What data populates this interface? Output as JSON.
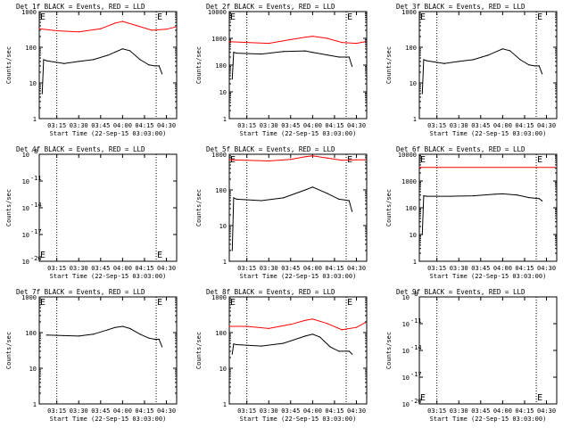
{
  "figure": {
    "ylabel": "Counts/sec",
    "xlabel": "Start Time (22-Sep-15 03:03:00)",
    "xticks": [
      "03:15",
      "03:30",
      "03:45",
      "04:00",
      "04:15",
      "04:30"
    ],
    "colors": {
      "events": "#000000",
      "lld": "#ff0000",
      "axes": "#000000",
      "background": "#ffffff"
    }
  },
  "chart_data": [
    {
      "type": "line",
      "title": "Det 1f BLACK = Events, RED = LLD",
      "yscale": "log",
      "ylim": [
        1,
        1000
      ],
      "yticklabels": [
        "1",
        "10",
        "100",
        "1000"
      ],
      "ytick_values": [
        1,
        10,
        100,
        1000
      ],
      "marker_labels": [
        {
          "text": "E",
          "x": "03:03"
        },
        {
          "text": "E",
          "x": "04:23"
        }
      ],
      "dotted_vlines": [
        "03:15",
        "04:23"
      ],
      "series": [
        {
          "key": "events",
          "x": [
            "03:05",
            "03:06",
            "03:08",
            "03:20",
            "03:30",
            "03:40",
            "03:50",
            "04:00",
            "04:05",
            "04:12",
            "04:18",
            "04:22",
            "04:25",
            "04:27"
          ],
          "values": [
            5,
            45,
            42,
            35,
            40,
            45,
            60,
            90,
            80,
            45,
            32,
            30,
            30,
            18
          ]
        },
        {
          "key": "lld",
          "x": [
            "03:03",
            "03:15",
            "03:30",
            "03:45",
            "03:55",
            "04:00",
            "04:10",
            "04:20",
            "04:30",
            "04:36"
          ],
          "values": [
            330,
            290,
            270,
            330,
            480,
            530,
            400,
            300,
            320,
            370
          ]
        }
      ]
    },
    {
      "type": "line",
      "title": "Det 2f BLACK = Events, RED = LLD",
      "yscale": "log",
      "ylim": [
        1,
        10000
      ],
      "yticklabels": [
        "1",
        "10",
        "100",
        "1000",
        "10000"
      ],
      "ytick_values": [
        1,
        10,
        100,
        1000,
        10000
      ],
      "marker_labels": [
        {
          "text": "E",
          "x": "03:03"
        },
        {
          "text": "E",
          "x": "04:23"
        }
      ],
      "dotted_vlines": [
        "03:15",
        "04:23"
      ],
      "series": [
        {
          "key": "events",
          "x": [
            "03:05",
            "03:06",
            "03:08",
            "03:25",
            "03:40",
            "03:55",
            "04:00",
            "04:10",
            "04:18",
            "04:25",
            "04:27"
          ],
          "values": [
            30,
            300,
            280,
            260,
            320,
            340,
            300,
            240,
            200,
            200,
            90
          ]
        },
        {
          "key": "lld",
          "x": [
            "03:03",
            "03:15",
            "03:30",
            "03:45",
            "03:55",
            "04:00",
            "04:10",
            "04:20",
            "04:30",
            "04:36"
          ],
          "values": [
            750,
            700,
            650,
            900,
            1100,
            1200,
            1000,
            700,
            650,
            750
          ]
        }
      ]
    },
    {
      "type": "line",
      "title": "Det 3f BLACK = Events, RED = LLD",
      "yscale": "log",
      "ylim": [
        1,
        1000
      ],
      "yticklabels": [
        "1",
        "10",
        "100",
        "1000"
      ],
      "ytick_values": [
        1,
        10,
        100,
        1000
      ],
      "marker_labels": [
        {
          "text": "E",
          "x": "03:03"
        },
        {
          "text": "E",
          "x": "04:23"
        }
      ],
      "dotted_vlines": [
        "03:15",
        "04:23"
      ],
      "series": [
        {
          "key": "events",
          "x": [
            "03:05",
            "03:06",
            "03:08",
            "03:20",
            "03:30",
            "03:40",
            "03:50",
            "04:00",
            "04:05",
            "04:12",
            "04:18",
            "04:22",
            "04:25",
            "04:27"
          ],
          "values": [
            5,
            45,
            42,
            35,
            40,
            45,
            60,
            90,
            80,
            45,
            32,
            30,
            30,
            18
          ]
        }
      ]
    },
    {
      "type": "line",
      "title": "Det 4f BLACK = Events, RED = LLD",
      "yscale": "log",
      "ylim": [
        1e-20,
        1e-08
      ],
      "yticklabels": [
        "10",
        "10",
        "10",
        "10",
        "10"
      ],
      "ytick_values": [
        -20,
        -17,
        -14,
        -11,
        -8
      ],
      "ytick_exponents": [
        "-20",
        "-17",
        "-14",
        "-11",
        "-8"
      ],
      "marker_labels": [
        {
          "text": "E",
          "x": "03:03"
        },
        {
          "text": "E",
          "x": "04:23"
        }
      ],
      "dotted_vlines": [
        "03:15",
        "04:23"
      ],
      "series": []
    },
    {
      "type": "line",
      "title": "Det 5f BLACK = Events, RED = LLD",
      "yscale": "log",
      "ylim": [
        1,
        1000
      ],
      "yticklabels": [
        "1",
        "10",
        "100",
        "1000"
      ],
      "ytick_values": [
        1,
        10,
        100,
        1000
      ],
      "marker_labels": [
        {
          "text": "E",
          "x": "03:03"
        },
        {
          "text": "E",
          "x": "04:23"
        }
      ],
      "dotted_vlines": [
        "03:15",
        "04:23"
      ],
      "series": [
        {
          "key": "events",
          "x": [
            "03:05",
            "03:06",
            "03:08",
            "03:25",
            "03:40",
            "03:55",
            "04:00",
            "04:10",
            "04:18",
            "04:25",
            "04:27"
          ],
          "values": [
            2,
            60,
            55,
            50,
            60,
            100,
            120,
            80,
            55,
            50,
            25
          ]
        },
        {
          "key": "lld",
          "x": [
            "03:03",
            "03:15",
            "03:30",
            "03:45",
            "03:55",
            "04:00",
            "04:10",
            "04:20",
            "04:30",
            "04:36"
          ],
          "values": [
            700,
            680,
            650,
            720,
            850,
            900,
            780,
            680,
            700,
            700
          ]
        }
      ]
    },
    {
      "type": "line",
      "title": "Det 6f BLACK = Events, RED = LLD",
      "yscale": "log",
      "ylim": [
        1,
        10000
      ],
      "yticklabels": [
        "1",
        "10",
        "100",
        "1000",
        "10000"
      ],
      "ytick_values": [
        1,
        10,
        100,
        1000,
        10000
      ],
      "marker_labels": [
        {
          "text": "E",
          "x": "03:03"
        },
        {
          "text": "E",
          "x": "04:23"
        }
      ],
      "dotted_vlines": [
        "03:15",
        "04:23"
      ],
      "series": [
        {
          "key": "events",
          "x": [
            "03:05",
            "03:06",
            "03:08",
            "03:25",
            "03:40",
            "03:55",
            "04:00",
            "04:10",
            "04:18",
            "04:25",
            "04:27"
          ],
          "values": [
            10,
            280,
            270,
            270,
            280,
            320,
            330,
            300,
            240,
            220,
            180
          ]
        },
        {
          "key": "lld",
          "x": [
            "03:03",
            "04:36"
          ],
          "values": [
            3200,
            3200
          ]
        }
      ]
    },
    {
      "type": "line",
      "title": "Det 7f BLACK = Events, RED = LLD",
      "yscale": "log",
      "ylim": [
        1,
        1000
      ],
      "yticklabels": [
        "1",
        "10",
        "100",
        "1000"
      ],
      "ytick_values": [
        1,
        10,
        100,
        1000
      ],
      "marker_labels": [
        {
          "text": "E",
          "x": "03:03"
        },
        {
          "text": "E",
          "x": "04:23"
        }
      ],
      "dotted_vlines": [
        "03:15",
        "04:23"
      ],
      "series": [
        {
          "key": "events",
          "x": [
            "03:08",
            "03:20",
            "03:30",
            "03:40",
            "03:50",
            "03:55",
            "04:00",
            "04:05",
            "04:12",
            "04:18",
            "04:22",
            "04:25",
            "04:27"
          ],
          "values": [
            85,
            82,
            80,
            90,
            120,
            140,
            150,
            130,
            90,
            70,
            65,
            65,
            40
          ]
        }
      ]
    },
    {
      "type": "line",
      "title": "Det 8f BLACK = Events, RED = LLD",
      "yscale": "log",
      "ylim": [
        1,
        1000
      ],
      "yticklabels": [
        "1",
        "10",
        "100",
        "1000"
      ],
      "ytick_values": [
        1,
        10,
        100,
        1000
      ],
      "marker_labels": [
        {
          "text": "E",
          "x": "03:03"
        },
        {
          "text": "E",
          "x": "04:23"
        }
      ],
      "dotted_vlines": [
        "03:15",
        "04:23"
      ],
      "series": [
        {
          "key": "events",
          "x": [
            "03:05",
            "03:06",
            "03:08",
            "03:25",
            "03:40",
            "03:55",
            "04:00",
            "04:05",
            "04:12",
            "04:18",
            "04:25",
            "04:27"
          ],
          "values": [
            25,
            48,
            46,
            42,
            50,
            80,
            90,
            75,
            40,
            30,
            30,
            25
          ]
        },
        {
          "key": "lld",
          "x": [
            "03:03",
            "03:15",
            "03:30",
            "03:45",
            "03:55",
            "04:00",
            "04:10",
            "04:20",
            "04:30",
            "04:36"
          ],
          "values": [
            150,
            150,
            130,
            170,
            220,
            240,
            180,
            120,
            140,
            190
          ]
        }
      ]
    },
    {
      "type": "line",
      "title": "Det 9f BLACK = Events, RED = LLD",
      "yscale": "log",
      "ylim": [
        1e-20,
        1e-08
      ],
      "yticklabels": [
        "10",
        "10",
        "10",
        "10",
        "10"
      ],
      "ytick_values": [
        -20,
        -17,
        -14,
        -11,
        -8
      ],
      "ytick_exponents": [
        "-20",
        "-17",
        "-14",
        "-11",
        "-8"
      ],
      "marker_labels": [
        {
          "text": "E",
          "x": "03:03"
        },
        {
          "text": "E",
          "x": "04:23"
        }
      ],
      "dotted_vlines": [
        "03:15",
        "04:23"
      ],
      "series": []
    }
  ]
}
